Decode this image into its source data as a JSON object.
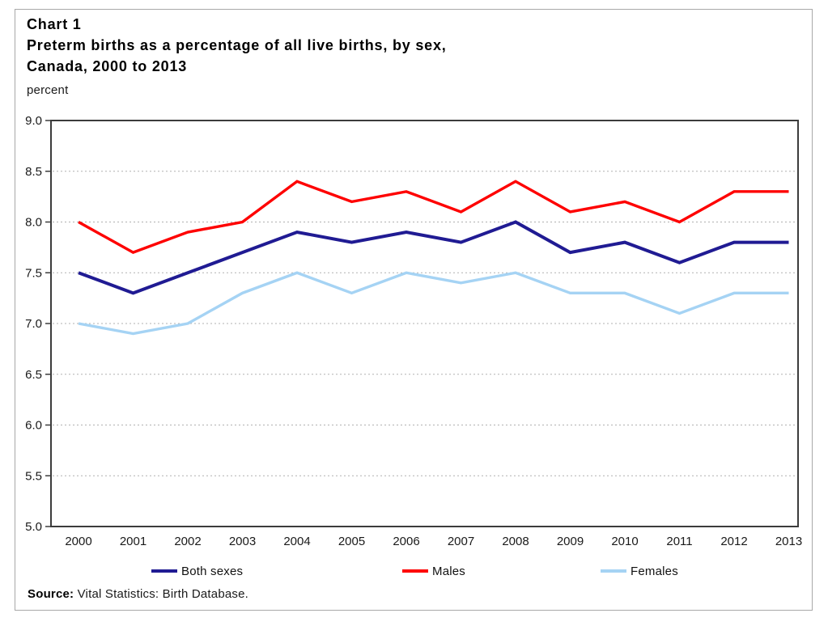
{
  "figure": {
    "chart_label": "Chart 1",
    "title_line1": "Preterm births as a percentage of all live births, by sex,",
    "title_line2": "Canada, 2000 to 2013",
    "unit_label": "percent",
    "source_label": "Source:",
    "source_text": "Vital Statistics: Birth Database."
  },
  "chart_data": {
    "type": "line",
    "title": "Preterm births as a percentage of all live births, by sex, Canada, 2000 to 2013",
    "xlabel": "",
    "ylabel": "percent",
    "x": [
      2000,
      2001,
      2002,
      2003,
      2004,
      2005,
      2006,
      2007,
      2008,
      2009,
      2010,
      2011,
      2012,
      2013
    ],
    "series": [
      {
        "name": "Both sexes",
        "color": "#201B93",
        "values": [
          7.5,
          7.3,
          7.5,
          7.7,
          7.9,
          7.8,
          7.9,
          7.8,
          8.0,
          7.7,
          7.8,
          7.6,
          7.8,
          7.8
        ]
      },
      {
        "name": "Males",
        "color": "#FE0000",
        "values": [
          8.0,
          7.7,
          7.9,
          8.0,
          8.4,
          8.2,
          8.3,
          8.1,
          8.4,
          8.1,
          8.2,
          8.0,
          8.3,
          8.3
        ]
      },
      {
        "name": "Females",
        "color": "#A5D3F4",
        "values": [
          7.0,
          6.9,
          7.0,
          7.3,
          7.5,
          7.3,
          7.5,
          7.4,
          7.5,
          7.3,
          7.3,
          7.1,
          7.3,
          7.3
        ]
      }
    ],
    "ylim": [
      5.0,
      9.0
    ],
    "ytick_step": 0.5,
    "grid": true,
    "legend_position": "bottom",
    "axis_color": "#3c3c3c",
    "grid_color": "#b0b0b0",
    "tick_label_color": "#1a1a1a"
  }
}
